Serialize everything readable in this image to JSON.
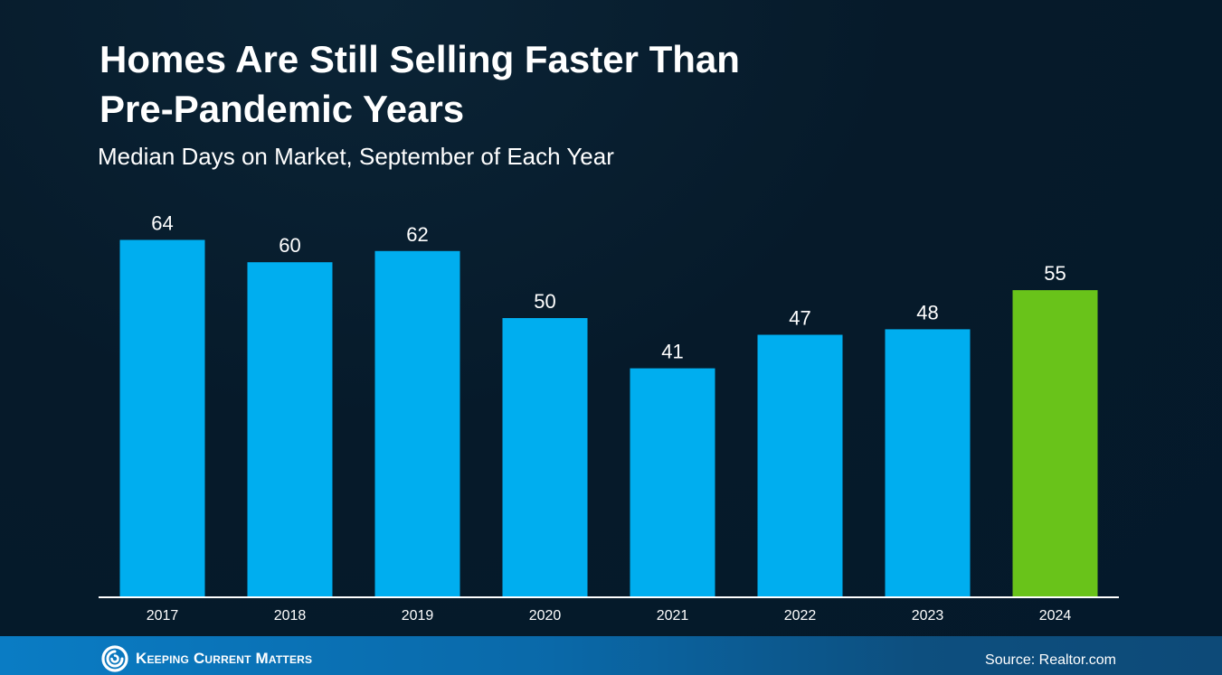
{
  "header": {
    "title_line1": "Homes Are Still Selling Faster Than",
    "title_line2": "Pre-Pandemic Years",
    "subtitle": "Median Days on Market, September of Each Year"
  },
  "footer": {
    "brand": "Keeping Current Matters",
    "source": "Source: Realtor.com"
  },
  "colors": {
    "bar_default": "#00aeef",
    "bar_highlight": "#69c31a",
    "axis_line": "#ffffff"
  },
  "chart_data": {
    "type": "bar",
    "title": "Homes Are Still Selling Faster Than Pre-Pandemic Years",
    "subtitle": "Median Days on Market, September of Each Year",
    "categories": [
      "2017",
      "2018",
      "2019",
      "2020",
      "2021",
      "2022",
      "2023",
      "2024"
    ],
    "values": [
      64,
      60,
      62,
      50,
      41,
      47,
      48,
      55
    ],
    "highlight": [
      "2024"
    ],
    "data_labels": true,
    "grid": false,
    "ylim": [
      0,
      68
    ]
  }
}
